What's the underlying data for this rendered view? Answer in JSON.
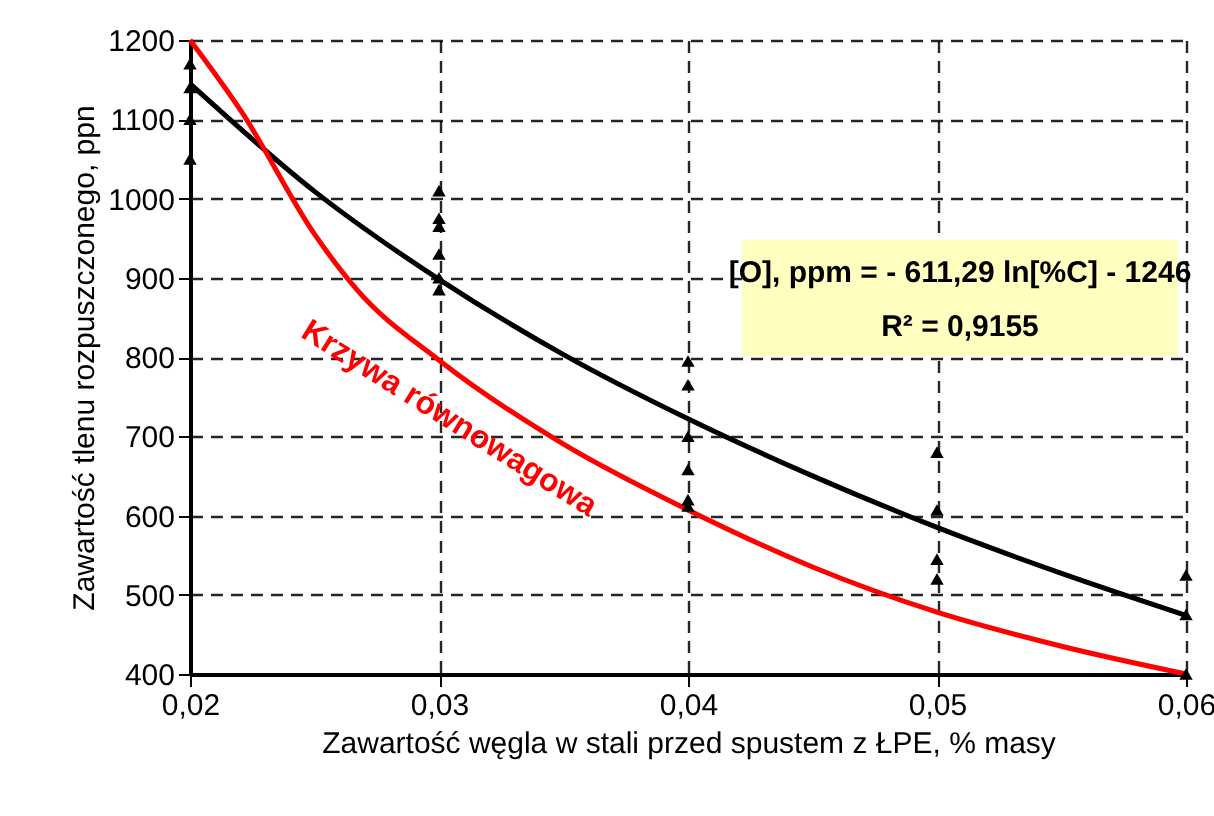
{
  "chart_data": {
    "type": "scatter",
    "xlabel": "Zawartość węgla w stali przed spustem z ŁPE, % masy",
    "ylabel": "Zawartość tlenu rozpuszczonego, ppn",
    "annotations": [
      "[O], ppm = - 611,29 ln[%C] - 1246",
      "R² = 0,9155"
    ],
    "xlim": [
      0.02,
      0.06
    ],
    "xticks": [
      {
        "value": 0.02,
        "label": "0,02"
      },
      {
        "value": 0.03,
        "label": "0,03"
      },
      {
        "value": 0.04,
        "label": "0,04"
      },
      {
        "value": 0.05,
        "label": "0,05"
      },
      {
        "value": 0.06,
        "label": "0,06"
      }
    ],
    "ylim": [
      400,
      1200
    ],
    "yticks": [
      400,
      500,
      600,
      700,
      800,
      900,
      1000,
      1100,
      1200
    ],
    "grid": true,
    "series": [
      {
        "color": "#000000",
        "marker": "triangle",
        "x": [
          0.02,
          0.02,
          0.02,
          0.02,
          0.03,
          0.03,
          0.03,
          0.03,
          0.03,
          0.03,
          0.04,
          0.04,
          0.04,
          0.04,
          0.04,
          0.04,
          0.05,
          0.05,
          0.05,
          0.05,
          0.06,
          0.06,
          0.06
        ],
        "values": [
          1170,
          1140,
          1100,
          1050,
          1010,
          975,
          965,
          930,
          900,
          885,
          795,
          765,
          700,
          658,
          620,
          612,
          680,
          607,
          545,
          520,
          525,
          475,
          400
        ]
      },
      {
        "type": "line",
        "color": "#000000",
        "x": [
          0.02,
          0.025,
          0.03,
          0.035,
          0.04,
          0.045,
          0.05,
          0.055,
          0.06
        ],
        "values": [
          1145,
          1009,
          898,
          803,
          722,
          650,
          585,
          527,
          474
        ]
      },
      {
        "type": "line",
        "name": "Krzywa równowagowa",
        "color": "#ff0000",
        "x": [
          0.02,
          0.0221,
          0.025,
          0.0267,
          0.03,
          0.035,
          0.04,
          0.045,
          0.05,
          0.055,
          0.06
        ],
        "values": [
          1200,
          1108,
          955,
          885,
          796,
          690,
          607,
          535,
          478,
          435,
          400
        ]
      }
    ]
  }
}
